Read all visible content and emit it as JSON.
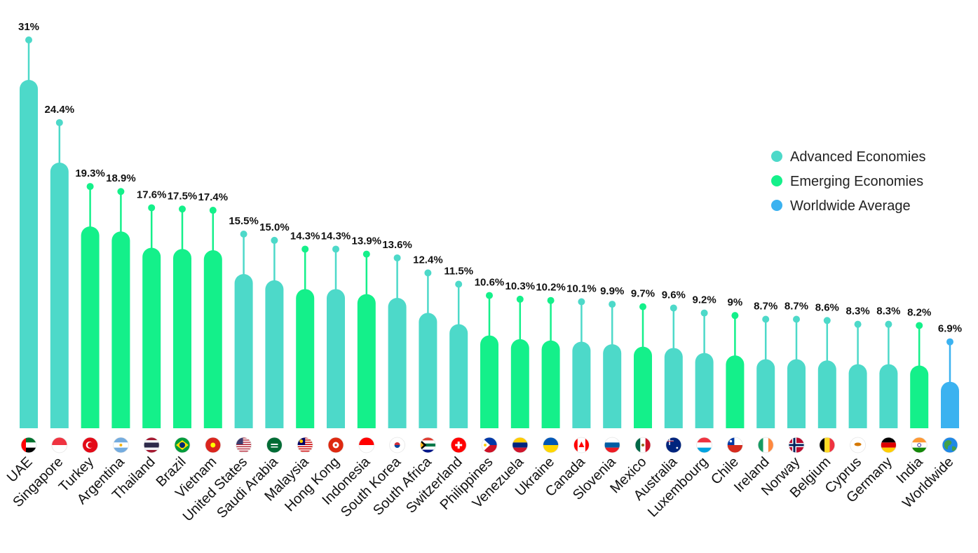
{
  "chart_data": {
    "type": "bar",
    "title": "",
    "xlabel": "",
    "ylabel": "",
    "ylim": [
      0,
      31
    ],
    "grid": false,
    "legend_position": "right",
    "legend": [
      {
        "key": "advanced",
        "label": "Advanced Economies",
        "color": "#4DD9C9"
      },
      {
        "key": "emerging",
        "label": "Emerging Economies",
        "color": "#14F08A"
      },
      {
        "key": "worldwide",
        "label": "Worldwide Average",
        "color": "#3BB2F0"
      }
    ],
    "bars": [
      {
        "category": "UAE",
        "value": 31,
        "label": "31%",
        "group": "advanced",
        "flag": "uae-flag"
      },
      {
        "category": "Singapore",
        "value": 24.4,
        "label": "24.4%",
        "group": "advanced",
        "flag": "singapore-flag"
      },
      {
        "category": "Turkey",
        "value": 19.3,
        "label": "19.3%",
        "group": "emerging",
        "flag": "turkey-flag"
      },
      {
        "category": "Argentina",
        "value": 18.9,
        "label": "18.9%",
        "group": "emerging",
        "flag": "argentina-flag"
      },
      {
        "category": "Thailand",
        "value": 17.6,
        "label": "17.6%",
        "group": "emerging",
        "flag": "thailand-flag"
      },
      {
        "category": "Brazil",
        "value": 17.5,
        "label": "17.5%",
        "group": "emerging",
        "flag": "brazil-flag"
      },
      {
        "category": "Vietnam",
        "value": 17.4,
        "label": "17.4%",
        "group": "emerging",
        "flag": "vietnam-flag"
      },
      {
        "category": "United States",
        "value": 15.5,
        "label": "15.5%",
        "group": "advanced",
        "flag": "usa-flag"
      },
      {
        "category": "Saudi Arabia",
        "value": 15.0,
        "label": "15.0%",
        "group": "advanced",
        "flag": "saudi-arabia-flag"
      },
      {
        "category": "Malaysia",
        "value": 14.3,
        "label": "14.3%",
        "group": "emerging",
        "flag": "malaysia-flag"
      },
      {
        "category": "Hong Kong",
        "value": 14.3,
        "label": "14.3%",
        "group": "advanced",
        "flag": "hong-kong-flag"
      },
      {
        "category": "Indonesia",
        "value": 13.9,
        "label": "13.9%",
        "group": "emerging",
        "flag": "indonesia-flag"
      },
      {
        "category": "South Korea",
        "value": 13.6,
        "label": "13.6%",
        "group": "advanced",
        "flag": "south-korea-flag"
      },
      {
        "category": "South Africa",
        "value": 12.4,
        "label": "12.4%",
        "group": "advanced",
        "flag": "south-africa-flag"
      },
      {
        "category": "Switzerland",
        "value": 11.5,
        "label": "11.5%",
        "group": "advanced",
        "flag": "switzerland-flag"
      },
      {
        "category": "Philippines",
        "value": 10.6,
        "label": "10.6%",
        "group": "emerging",
        "flag": "philippines-flag"
      },
      {
        "category": "Venezuela",
        "value": 10.3,
        "label": "10.3%",
        "group": "emerging",
        "flag": "venezuela-flag"
      },
      {
        "category": "Ukraine",
        "value": 10.2,
        "label": "10.2%",
        "group": "emerging",
        "flag": "ukraine-flag"
      },
      {
        "category": "Canada",
        "value": 10.1,
        "label": "10.1%",
        "group": "advanced",
        "flag": "canada-flag"
      },
      {
        "category": "Slovenia",
        "value": 9.9,
        "label": "9.9%",
        "group": "advanced",
        "flag": "slovenia-flag"
      },
      {
        "category": "Mexico",
        "value": 9.7,
        "label": "9.7%",
        "group": "emerging",
        "flag": "mexico-flag"
      },
      {
        "category": "Australia",
        "value": 9.6,
        "label": "9.6%",
        "group": "advanced",
        "flag": "australia-flag"
      },
      {
        "category": "Luxembourg",
        "value": 9.2,
        "label": "9.2%",
        "group": "advanced",
        "flag": "luxembourg-flag"
      },
      {
        "category": "Chile",
        "value": 9,
        "label": "9%",
        "group": "emerging",
        "flag": "chile-flag"
      },
      {
        "category": "Ireland",
        "value": 8.7,
        "label": "8.7%",
        "group": "advanced",
        "flag": "ireland-flag"
      },
      {
        "category": "Norway",
        "value": 8.7,
        "label": "8.7%",
        "group": "advanced",
        "flag": "norway-flag"
      },
      {
        "category": "Belgium",
        "value": 8.6,
        "label": "8.6%",
        "group": "advanced",
        "flag": "belgium-flag"
      },
      {
        "category": "Cyprus",
        "value": 8.3,
        "label": "8.3%",
        "group": "advanced",
        "flag": "cyprus-flag"
      },
      {
        "category": "Germany",
        "value": 8.3,
        "label": "8.3%",
        "group": "advanced",
        "flag": "germany-flag"
      },
      {
        "category": "India",
        "value": 8.2,
        "label": "8.2%",
        "group": "emerging",
        "flag": "india-flag"
      },
      {
        "category": "Worldwide",
        "value": 6.9,
        "label": "6.9%",
        "group": "worldwide",
        "flag": "globe-icon"
      }
    ]
  }
}
